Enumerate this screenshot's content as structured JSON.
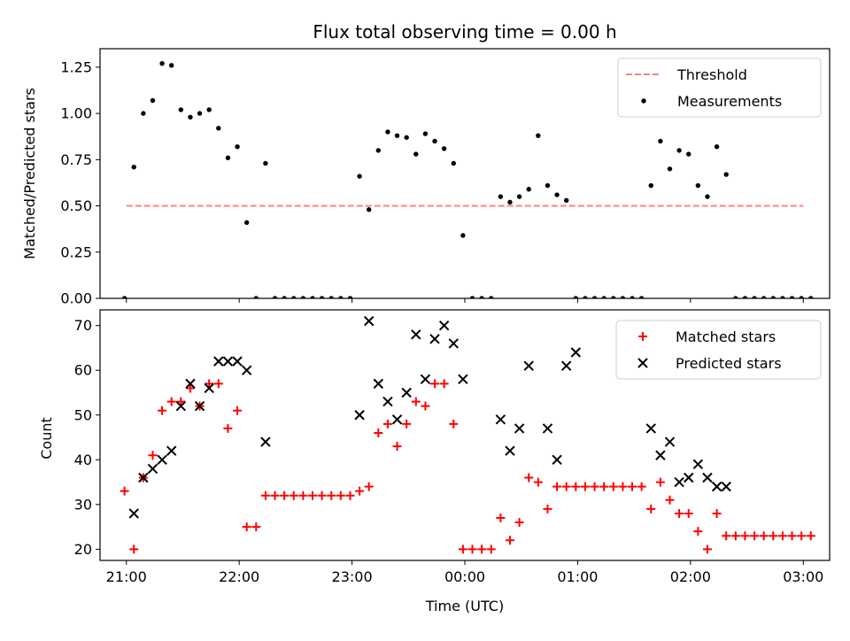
{
  "figure": {
    "title": "Flux total observing time = 0.00 h",
    "xlabel": "Time (UTC)"
  },
  "colors": {
    "threshold": "#ff7f7f",
    "measurements": "#000000",
    "matched": "#ff0000",
    "predicted": "#000000"
  },
  "chart_data": [
    {
      "type": "scatter",
      "panel": "top",
      "ylabel": "Matched/Predicted stars",
      "ylim": [
        0,
        1.35
      ],
      "yticks": [
        0.0,
        0.25,
        0.5,
        0.75,
        1.0,
        1.25
      ],
      "yticklabels": [
        "0.00",
        "0.25",
        "0.50",
        "0.75",
        "1.00",
        "1.25"
      ],
      "xlim": [
        "20:46",
        "03:14"
      ],
      "xticks": [
        "21:00",
        "22:00",
        "23:00",
        "00:00",
        "01:00",
        "02:00",
        "03:00"
      ],
      "legend": {
        "placement": "top-right",
        "entries": [
          "Threshold",
          "Measurements"
        ]
      },
      "series": [
        {
          "name": "Threshold",
          "kind": "dashed-line",
          "x": [
            "21:00",
            "03:00"
          ],
          "y": [
            0.5,
            0.5
          ]
        },
        {
          "name": "Measurements",
          "kind": "points",
          "points": [
            [
              "20:59",
              0.0
            ],
            [
              "21:04",
              0.71
            ],
            [
              "21:09",
              1.0
            ],
            [
              "21:14",
              1.07
            ],
            [
              "21:19",
              1.27
            ],
            [
              "21:24",
              1.26
            ],
            [
              "21:29",
              1.02
            ],
            [
              "21:34",
              0.98
            ],
            [
              "21:39",
              1.0
            ],
            [
              "21:44",
              1.02
            ],
            [
              "21:49",
              0.92
            ],
            [
              "21:54",
              0.76
            ],
            [
              "21:59",
              0.82
            ],
            [
              "22:04",
              0.41
            ],
            [
              "22:09",
              0.0
            ],
            [
              "22:14",
              0.73
            ],
            [
              "22:19",
              0.0
            ],
            [
              "22:24",
              0.0
            ],
            [
              "22:29",
              0.0
            ],
            [
              "22:34",
              0.0
            ],
            [
              "22:39",
              0.0
            ],
            [
              "22:44",
              0.0
            ],
            [
              "22:49",
              0.0
            ],
            [
              "22:54",
              0.0
            ],
            [
              "22:59",
              0.0
            ],
            [
              "23:04",
              0.66
            ],
            [
              "23:09",
              0.48
            ],
            [
              "23:14",
              0.8
            ],
            [
              "23:19",
              0.9
            ],
            [
              "23:24",
              0.88
            ],
            [
              "23:29",
              0.87
            ],
            [
              "23:34",
              0.78
            ],
            [
              "23:39",
              0.89
            ],
            [
              "23:44",
              0.85
            ],
            [
              "23:49",
              0.81
            ],
            [
              "23:54",
              0.73
            ],
            [
              "23:59",
              0.34
            ],
            [
              "00:04",
              0.0
            ],
            [
              "00:09",
              0.0
            ],
            [
              "00:14",
              0.0
            ],
            [
              "00:19",
              0.55
            ],
            [
              "00:24",
              0.52
            ],
            [
              "00:29",
              0.55
            ],
            [
              "00:34",
              0.59
            ],
            [
              "00:39",
              0.88
            ],
            [
              "00:44",
              0.61
            ],
            [
              "00:49",
              0.56
            ],
            [
              "00:54",
              0.53
            ],
            [
              "00:59",
              0.0
            ],
            [
              "01:04",
              0.0
            ],
            [
              "01:09",
              0.0
            ],
            [
              "01:14",
              0.0
            ],
            [
              "01:19",
              0.0
            ],
            [
              "01:24",
              0.0
            ],
            [
              "01:29",
              0.0
            ],
            [
              "01:34",
              0.0
            ],
            [
              "01:39",
              0.61
            ],
            [
              "01:44",
              0.85
            ],
            [
              "01:49",
              0.7
            ],
            [
              "01:54",
              0.8
            ],
            [
              "01:59",
              0.78
            ],
            [
              "02:04",
              0.61
            ],
            [
              "02:09",
              0.55
            ],
            [
              "02:14",
              0.82
            ],
            [
              "02:19",
              0.67
            ],
            [
              "02:24",
              0.0
            ],
            [
              "02:29",
              0.0
            ],
            [
              "02:34",
              0.0
            ],
            [
              "02:39",
              0.0
            ],
            [
              "02:44",
              0.0
            ],
            [
              "02:49",
              0.0
            ],
            [
              "02:54",
              0.0
            ],
            [
              "02:59",
              0.0
            ],
            [
              "03:04",
              0.0
            ]
          ]
        }
      ]
    },
    {
      "type": "scatter",
      "panel": "bottom",
      "ylabel": "Count",
      "xlabel": "Time (UTC)",
      "ylim": [
        17.5,
        73.5
      ],
      "yticks": [
        20,
        30,
        40,
        50,
        60,
        70
      ],
      "yticklabels": [
        "20",
        "30",
        "40",
        "50",
        "60",
        "70"
      ],
      "xlim": [
        "20:46",
        "03:14"
      ],
      "xticks": [
        "21:00",
        "22:00",
        "23:00",
        "00:00",
        "01:00",
        "02:00",
        "03:00"
      ],
      "xticklabels": [
        "21:00",
        "22:00",
        "23:00",
        "00:00",
        "01:00",
        "02:00",
        "03:00"
      ],
      "legend": {
        "placement": "top-right",
        "entries": [
          "Matched stars",
          "Predicted stars"
        ]
      },
      "series": [
        {
          "name": "Matched stars",
          "marker": "+",
          "points": [
            [
              "20:59",
              33
            ],
            [
              "21:04",
              20
            ],
            [
              "21:09",
              36
            ],
            [
              "21:14",
              41
            ],
            [
              "21:19",
              51
            ],
            [
              "21:24",
              53
            ],
            [
              "21:29",
              53
            ],
            [
              "21:34",
              56
            ],
            [
              "21:39",
              52
            ],
            [
              "21:44",
              57
            ],
            [
              "21:49",
              57
            ],
            [
              "21:54",
              47
            ],
            [
              "21:59",
              51
            ],
            [
              "22:04",
              25
            ],
            [
              "22:09",
              25
            ],
            [
              "22:14",
              32
            ],
            [
              "22:19",
              32
            ],
            [
              "22:24",
              32
            ],
            [
              "22:29",
              32
            ],
            [
              "22:34",
              32
            ],
            [
              "22:39",
              32
            ],
            [
              "22:44",
              32
            ],
            [
              "22:49",
              32
            ],
            [
              "22:54",
              32
            ],
            [
              "22:59",
              32
            ],
            [
              "23:04",
              33
            ],
            [
              "23:09",
              34
            ],
            [
              "23:14",
              46
            ],
            [
              "23:19",
              48
            ],
            [
              "23:24",
              43
            ],
            [
              "23:29",
              48
            ],
            [
              "23:34",
              53
            ],
            [
              "23:39",
              52
            ],
            [
              "23:44",
              57
            ],
            [
              "23:49",
              57
            ],
            [
              "23:54",
              48
            ],
            [
              "23:59",
              20
            ],
            [
              "00:04",
              20
            ],
            [
              "00:09",
              20
            ],
            [
              "00:14",
              20
            ],
            [
              "00:19",
              27
            ],
            [
              "00:24",
              22
            ],
            [
              "00:29",
              26
            ],
            [
              "00:34",
              36
            ],
            [
              "00:39",
              35
            ],
            [
              "00:44",
              29
            ],
            [
              "00:49",
              34
            ],
            [
              "00:54",
              34
            ],
            [
              "00:59",
              34
            ],
            [
              "01:04",
              34
            ],
            [
              "01:09",
              34
            ],
            [
              "01:14",
              34
            ],
            [
              "01:19",
              34
            ],
            [
              "01:24",
              34
            ],
            [
              "01:29",
              34
            ],
            [
              "01:34",
              34
            ],
            [
              "01:39",
              29
            ],
            [
              "01:44",
              35
            ],
            [
              "01:49",
              31
            ],
            [
              "01:54",
              28
            ],
            [
              "01:59",
              28
            ],
            [
              "02:04",
              24
            ],
            [
              "02:09",
              20
            ],
            [
              "02:14",
              28
            ],
            [
              "02:19",
              23
            ],
            [
              "02:24",
              23
            ],
            [
              "02:29",
              23
            ],
            [
              "02:34",
              23
            ],
            [
              "02:39",
              23
            ],
            [
              "02:44",
              23
            ],
            [
              "02:49",
              23
            ],
            [
              "02:54",
              23
            ],
            [
              "02:59",
              23
            ],
            [
              "03:04",
              23
            ]
          ]
        },
        {
          "name": "Predicted stars",
          "marker": "x",
          "points": [
            [
              "21:04",
              28
            ],
            [
              "21:09",
              36
            ],
            [
              "21:14",
              38
            ],
            [
              "21:19",
              40
            ],
            [
              "21:24",
              42
            ],
            [
              "21:29",
              52
            ],
            [
              "21:34",
              57
            ],
            [
              "21:39",
              52
            ],
            [
              "21:44",
              56
            ],
            [
              "21:49",
              62
            ],
            [
              "21:54",
              62
            ],
            [
              "21:59",
              62
            ],
            [
              "22:04",
              60
            ],
            [
              "22:14",
              44
            ],
            [
              "23:04",
              50
            ],
            [
              "23:09",
              71
            ],
            [
              "23:14",
              57
            ],
            [
              "23:19",
              53
            ],
            [
              "23:24",
              49
            ],
            [
              "23:29",
              55
            ],
            [
              "23:34",
              68
            ],
            [
              "23:39",
              58
            ],
            [
              "23:44",
              67
            ],
            [
              "23:49",
              70
            ],
            [
              "23:54",
              66
            ],
            [
              "23:59",
              58
            ],
            [
              "00:19",
              49
            ],
            [
              "00:24",
              42
            ],
            [
              "00:29",
              47
            ],
            [
              "00:34",
              61
            ],
            [
              "00:44",
              47
            ],
            [
              "00:49",
              40
            ],
            [
              "00:54",
              61
            ],
            [
              "00:59",
              64
            ],
            [
              "01:39",
              47
            ],
            [
              "01:44",
              41
            ],
            [
              "01:49",
              44
            ],
            [
              "01:54",
              35
            ],
            [
              "01:59",
              36
            ],
            [
              "02:04",
              39
            ],
            [
              "02:09",
              36
            ],
            [
              "02:14",
              34
            ],
            [
              "02:19",
              34
            ]
          ]
        }
      ]
    }
  ]
}
